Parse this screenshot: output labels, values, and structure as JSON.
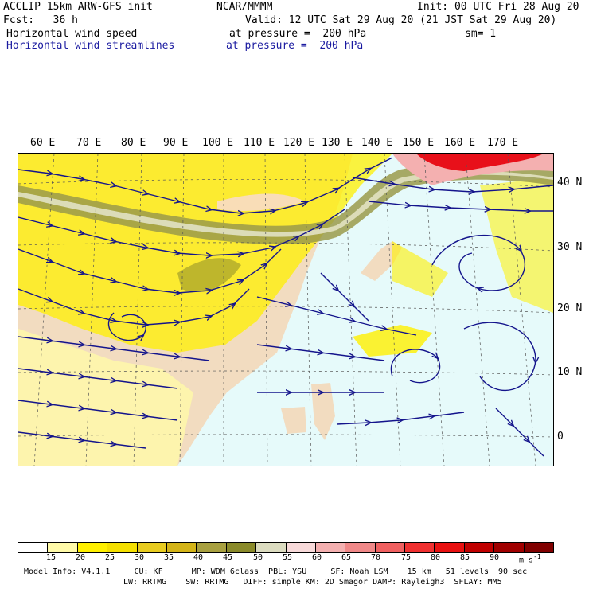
{
  "header": {
    "model": "ACCLIP 15km ARW-GFS init",
    "center": "NCAR/MMMM",
    "init": "Init: 00 UTC Fri 28 Aug 20",
    "fcst": "Fcst:   36 h",
    "valid": "Valid: 12 UTC Sat 29 Aug 20 (21 JST Sat 29 Aug 20)",
    "field1": "Horizontal wind speed",
    "field1_level": "at pressure =  200 hPa",
    "sm": "sm= 1",
    "field2": "Horizontal wind streamlines",
    "field2_level": "at pressure =  200 hPa"
  },
  "map": {
    "lon_labels": [
      "60 E",
      "70 E",
      "80 E",
      "90 E",
      "100 E",
      "110 E",
      "120 E",
      "130 E",
      "140 E",
      "150 E",
      "160 E",
      "170 E"
    ],
    "lat_labels": [
      "40 N",
      "30 N",
      "20 N",
      "10 N",
      "0"
    ],
    "colors": {
      "ocean": "#e6fafa",
      "land": "#f2dcc0",
      "streamline": "#14148c",
      "jet_band": "#9a9a4a",
      "jet_core": "#dcdcb8",
      "max": "#e8101a"
    }
  },
  "colorbar": {
    "labels": [
      "15",
      "20",
      "25",
      "30",
      "35",
      "40",
      "45",
      "50",
      "55",
      "60",
      "65",
      "70",
      "75",
      "80",
      "85",
      "90"
    ],
    "unit": "m s",
    "unit_exp": "-1",
    "colors": [
      "#ffffff",
      "#fffaa8",
      "#fff000",
      "#f5e000",
      "#e8cc20",
      "#d4b418",
      "#a8a040",
      "#8a8a2a",
      "#dcdcc0",
      "#f8dada",
      "#f4b0b0",
      "#f08888",
      "#f06060",
      "#f03030",
      "#e81010",
      "#c00000",
      "#a00000",
      "#800000"
    ]
  },
  "footer": {
    "line1": "Model Info: V4.1.1     CU: KF      MP: WDM 6class  PBL: YSU     SF: Noah LSM    15 km   51 levels  90 sec",
    "line2": "LW: RRTMG    SW: RRTMG   DIFF: simple KM: 2D Smagor DAMP: Rayleigh3  SFLAY: MM5"
  }
}
